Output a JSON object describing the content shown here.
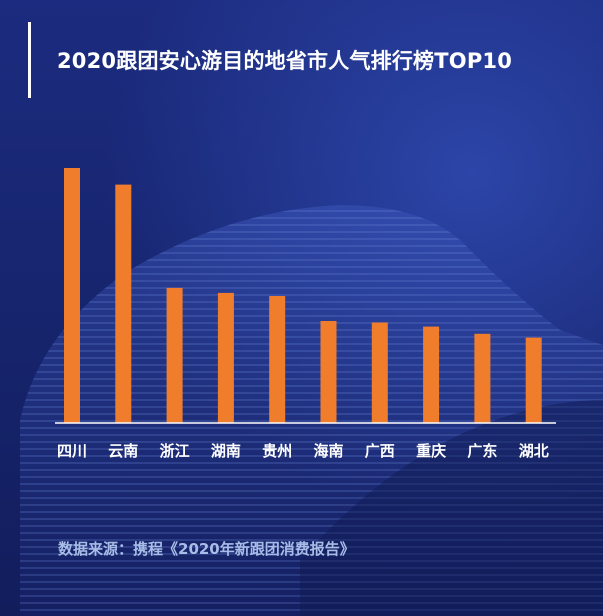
{
  "header": {
    "title": "2020跟团安心游目的地省市人气排行榜TOP10"
  },
  "footer": {
    "source": "数据来源：携程《2020年新跟团消费报告》"
  },
  "colors": {
    "background": "#1b2a78",
    "bar": "#f07d2c",
    "text": "#ffffff",
    "source_text": "#a7bde8"
  },
  "chart_data": {
    "type": "bar",
    "title": "2020跟团安心游目的地省市人气排行榜TOP10",
    "xlabel": "",
    "ylabel": "",
    "categories": [
      "四川",
      "云南",
      "浙江",
      "湖南",
      "贵州",
      "海南",
      "广西",
      "重庆",
      "广东",
      "湖北"
    ],
    "series": [
      {
        "values": [
          100,
          93.5,
          53,
          51,
          49.8,
          40,
          39.4,
          37.8,
          35,
          33.5
        ]
      }
    ],
    "ylim": [
      0,
      100
    ],
    "grid": false,
    "legend": "none",
    "y_axis_visible": false
  }
}
